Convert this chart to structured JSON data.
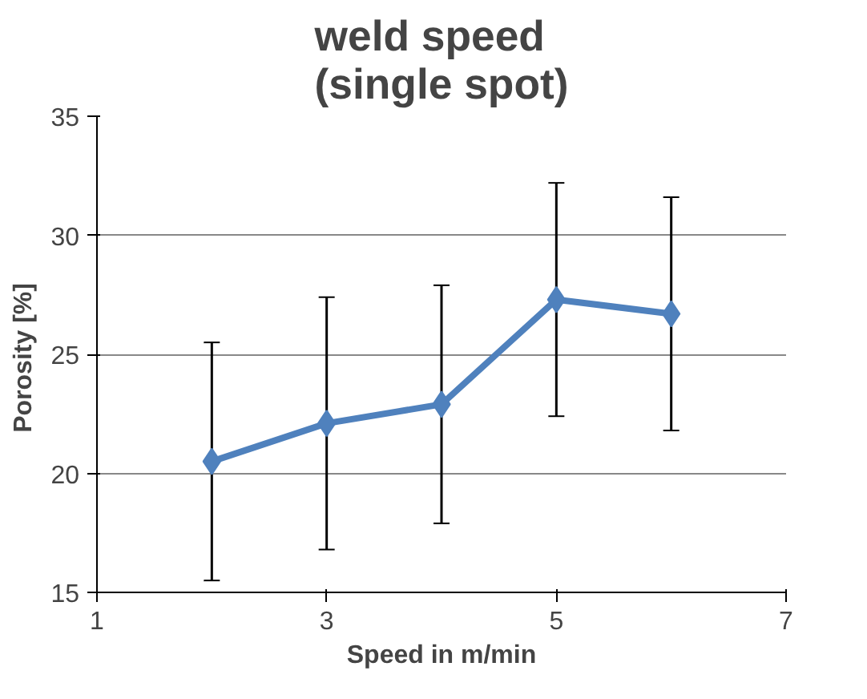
{
  "chart_data": {
    "type": "line",
    "title": "weld speed\n(single spot)",
    "xlabel": "Speed in m/min",
    "ylabel": "Porosity  [%]",
    "x": [
      2,
      3,
      4,
      5,
      6
    ],
    "series": [
      {
        "color": "#4f81bd",
        "values": [
          20.5,
          22.1,
          22.9,
          27.3,
          26.7
        ],
        "errors": [
          5,
          5.3,
          5,
          4.9,
          4.9
        ]
      }
    ],
    "xlim": [
      1,
      7
    ],
    "xticks": [
      1,
      3,
      5,
      7
    ],
    "ylim": [
      15,
      35
    ],
    "yticks": [
      15,
      20,
      25,
      30,
      35
    ],
    "grid": "y",
    "marker": "diamond",
    "line_style": "solid"
  }
}
